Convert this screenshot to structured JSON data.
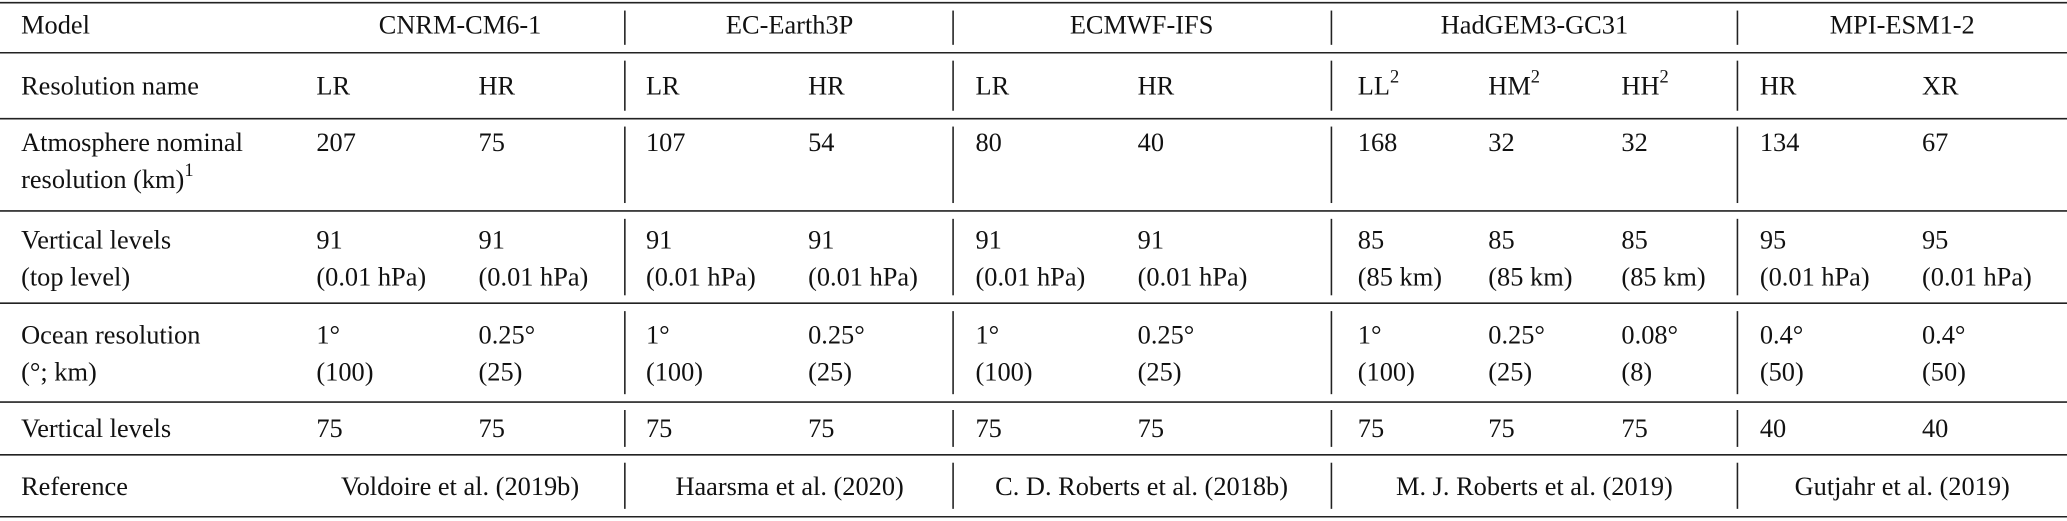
{
  "table": {
    "header": {
      "label": "Model",
      "models": [
        "CNRM-CM6-1",
        "EC-Earth3P",
        "ECMWF-IFS",
        "HadGEM3-GC31",
        "MPI-ESM1-2"
      ]
    },
    "rows": [
      {
        "label": [
          "Resolution name"
        ],
        "cells": [
          [
            "LR"
          ],
          [
            "HR"
          ],
          [
            "LR"
          ],
          [
            "HR"
          ],
          [
            "LR"
          ],
          [
            "HR"
          ],
          [
            {
              "text": "LL",
              "sup": "2"
            }
          ],
          [
            {
              "text": "HM",
              "sup": "2"
            }
          ],
          [
            {
              "text": "HH",
              "sup": "2"
            }
          ],
          [
            "HR"
          ],
          [
            "XR"
          ]
        ]
      },
      {
        "label": [
          "Atmosphere nominal",
          {
            "text": "resolution (km)",
            "sup": "1"
          }
        ],
        "cells": [
          [
            "207"
          ],
          [
            "75"
          ],
          [
            "107"
          ],
          [
            "54"
          ],
          [
            "80"
          ],
          [
            "40"
          ],
          [
            "168"
          ],
          [
            "32"
          ],
          [
            "32"
          ],
          [
            "134"
          ],
          [
            "67"
          ]
        ]
      },
      {
        "label": [
          "Vertical levels",
          "(top level)"
        ],
        "cells": [
          [
            "91",
            "(0.01 hPa)"
          ],
          [
            "91",
            "(0.01 hPa)"
          ],
          [
            "91",
            "(0.01 hPa)"
          ],
          [
            "91",
            "(0.01 hPa)"
          ],
          [
            "91",
            "(0.01 hPa)"
          ],
          [
            "91",
            "(0.01 hPa)"
          ],
          [
            "85",
            "(85 km)"
          ],
          [
            "85",
            "(85 km)"
          ],
          [
            "85",
            "(85 km)"
          ],
          [
            "95",
            "(0.01 hPa)"
          ],
          [
            "95",
            "(0.01 hPa)"
          ]
        ]
      },
      {
        "label": [
          "Ocean resolution",
          "(°; km)"
        ],
        "cells": [
          [
            "1°",
            "(100)"
          ],
          [
            "0.25°",
            "(25)"
          ],
          [
            "1°",
            "(100)"
          ],
          [
            "0.25°",
            "(25)"
          ],
          [
            "1°",
            "(100)"
          ],
          [
            "0.25°",
            "(25)"
          ],
          [
            "1°",
            "(100)"
          ],
          [
            "0.25°",
            "(25)"
          ],
          [
            "0.08°",
            "(8)"
          ],
          [
            "0.4°",
            "(50)"
          ],
          [
            "0.4°",
            "(50)"
          ]
        ]
      },
      {
        "label": [
          "Vertical levels"
        ],
        "cells": [
          [
            "75"
          ],
          [
            "75"
          ],
          [
            "75"
          ],
          [
            "75"
          ],
          [
            "75"
          ],
          [
            "75"
          ],
          [
            "75"
          ],
          [
            "75"
          ],
          [
            "75"
          ],
          [
            "40"
          ],
          [
            "40"
          ]
        ]
      }
    ],
    "reference": {
      "label": "Reference",
      "values": [
        "Voldoire et al. (2019b)",
        "Haarsma et al. (2020)",
        "C. D. Roberts et al. (2018b)",
        "M. J. Roberts et al. (2019)",
        "Gutjahr et al. (2019)"
      ]
    }
  }
}
